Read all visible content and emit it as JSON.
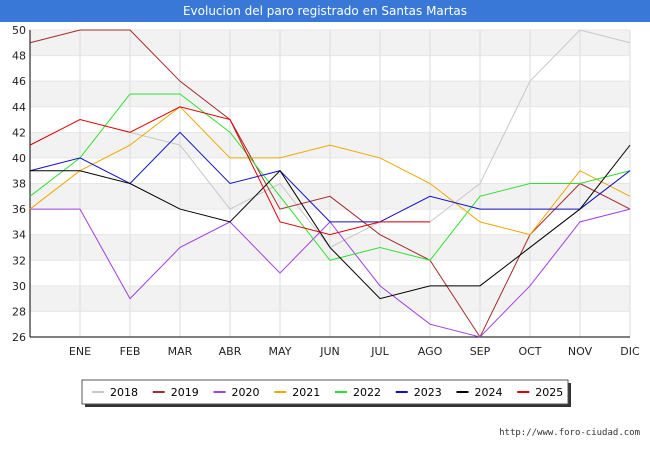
{
  "header": {
    "title": "Evolucion del paro registrado en Santas Martas"
  },
  "footer": {
    "url": "http://www.foro-ciudad.com"
  },
  "chart_data": {
    "type": "line",
    "title": "Evolucion del paro registrado en Santas Martas",
    "xlabel": "",
    "ylabel": "",
    "grid": true,
    "legend_position": "bottom",
    "ylim": [
      26,
      50
    ],
    "yticks": [
      26,
      28,
      30,
      32,
      34,
      36,
      38,
      40,
      42,
      44,
      46,
      48,
      50
    ],
    "categories": [
      "",
      "ENE",
      "FEB",
      "MAR",
      "ABR",
      "MAY",
      "JUN",
      "JUL",
      "AGO",
      "SEP",
      "OCT",
      "NOV",
      "DIC"
    ],
    "series": [
      {
        "name": "2018",
        "color": "#c8c8c8",
        "values": [
          null,
          null,
          42,
          41,
          36,
          38,
          33,
          35,
          35,
          38,
          46,
          50,
          49
        ]
      },
      {
        "name": "2019",
        "color": "#a52a2a",
        "values": [
          49,
          50,
          50,
          46,
          43,
          36,
          37,
          34,
          32,
          26,
          34,
          38,
          36
        ]
      },
      {
        "name": "2020",
        "color": "#a040e0",
        "values": [
          36,
          36,
          29,
          33,
          35,
          31,
          35,
          30,
          27,
          26,
          30,
          35,
          36
        ]
      },
      {
        "name": "2021",
        "color": "#f0a800",
        "values": [
          36,
          39,
          41,
          44,
          40,
          40,
          41,
          40,
          38,
          35,
          34,
          39,
          37
        ]
      },
      {
        "name": "2022",
        "color": "#30e030",
        "values": [
          37,
          40,
          45,
          45,
          42,
          37,
          32,
          33,
          32,
          37,
          38,
          38,
          39
        ]
      },
      {
        "name": "2023",
        "color": "#1010c8",
        "values": [
          39,
          40,
          38,
          42,
          38,
          39,
          35,
          35,
          37,
          36,
          36,
          36,
          39
        ]
      },
      {
        "name": "2024",
        "color": "#000000",
        "values": [
          39,
          39,
          38,
          36,
          35,
          39,
          33,
          29,
          30,
          30,
          33,
          36,
          41
        ]
      },
      {
        "name": "2025",
        "color": "#e00000",
        "values": [
          41,
          43,
          42,
          44,
          43,
          35,
          34,
          35,
          35,
          null,
          null,
          null,
          null
        ]
      }
    ]
  }
}
